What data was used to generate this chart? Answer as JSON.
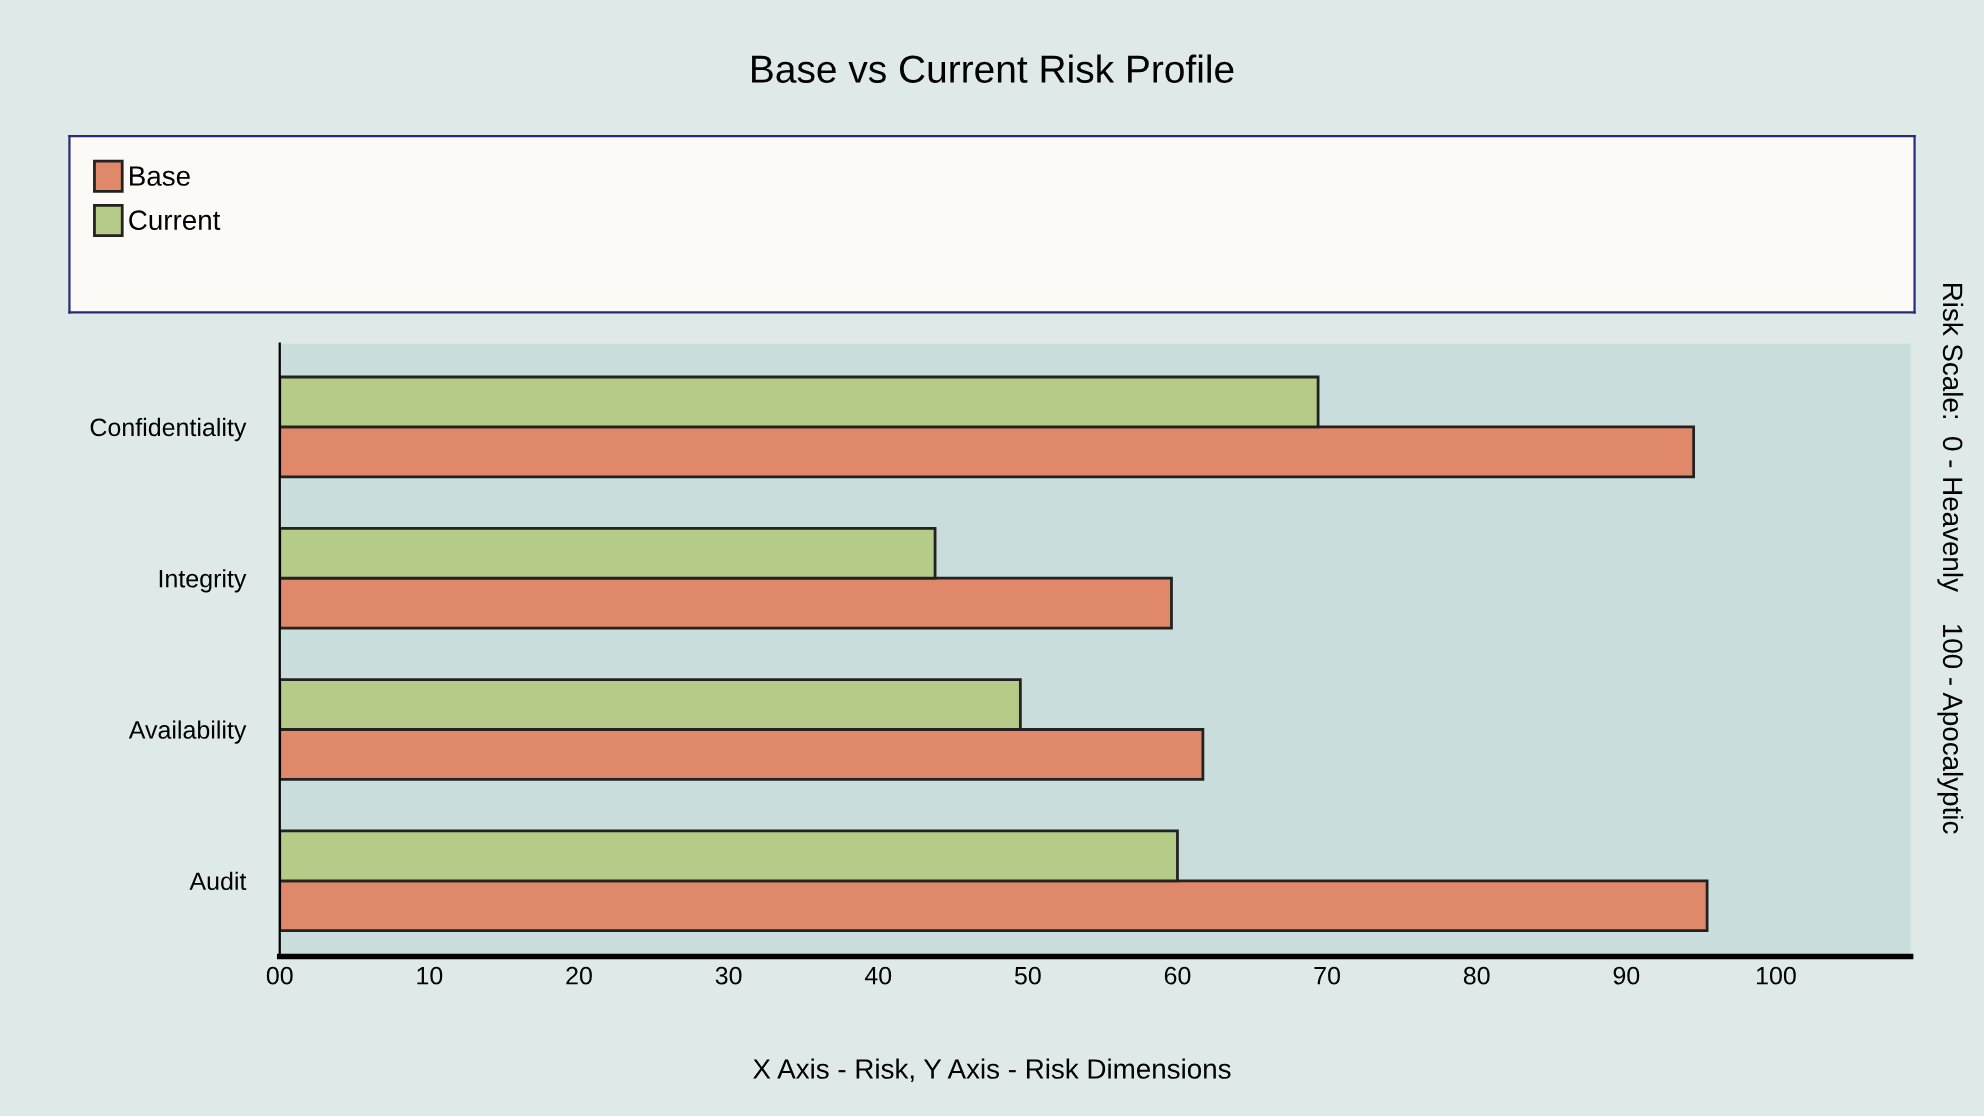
{
  "chart_data": {
    "type": "bar",
    "orientation": "horizontal",
    "title": "Base vs Current Risk Profile",
    "xlabel": "X Axis - Risk, Y Axis - Risk Dimensions",
    "annotations": [
      "Risk Scale:  0 - Heavenly    100 - Apocalyptic"
    ],
    "categories": [
      "Confidentiality",
      "Integrity",
      "Availability",
      "Audit"
    ],
    "series": [
      {
        "name": "Base",
        "color": "#e0886a",
        "values": [
          94.5,
          59.6,
          61.7,
          95.4
        ]
      },
      {
        "name": "Current",
        "color": "#b5cc88",
        "values": [
          69.4,
          43.8,
          49.5,
          60.0
        ]
      }
    ],
    "xlim": [
      0,
      109
    ],
    "xticks": [
      {
        "value": 0,
        "label": "00"
      },
      10,
      20,
      30,
      40,
      50,
      60,
      70,
      80,
      90,
      100
    ],
    "grid": false,
    "legend": "top"
  }
}
